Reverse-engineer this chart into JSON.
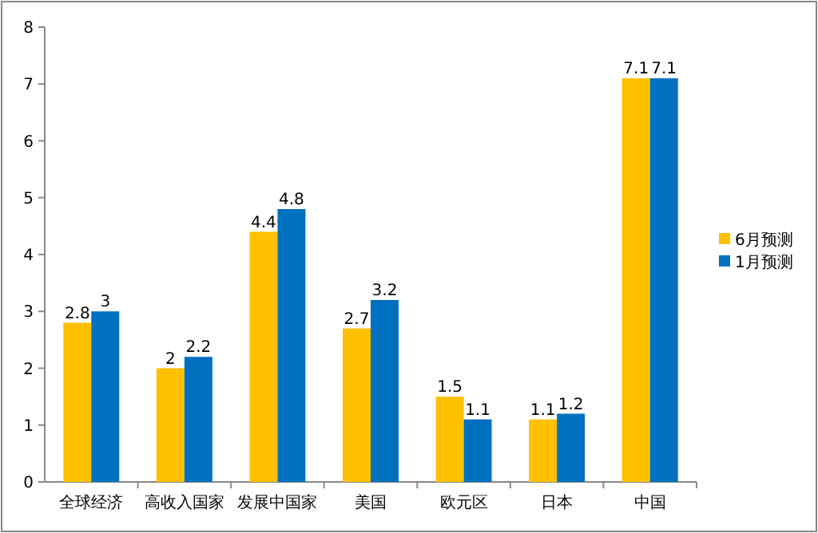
{
  "chart_data": {
    "type": "bar",
    "categories": [
      "全球经济",
      "高收入国家",
      "发展中国家",
      "美国",
      "欧元区",
      "日本",
      "中国"
    ],
    "series": [
      {
        "name": "6月预测",
        "color": "#ffc000",
        "values": [
          2.8,
          2,
          4.4,
          2.7,
          1.5,
          1.1,
          7.1
        ]
      },
      {
        "name": "1月预测",
        "color": "#0070c0",
        "values": [
          3,
          2.2,
          4.8,
          3.2,
          1.1,
          1.2,
          7.1
        ]
      }
    ],
    "ylim": [
      0,
      8
    ],
    "yticks": [
      0,
      1,
      2,
      3,
      4,
      5,
      6,
      7,
      8
    ],
    "data_labels": true,
    "legend": "right",
    "grid": false
  }
}
